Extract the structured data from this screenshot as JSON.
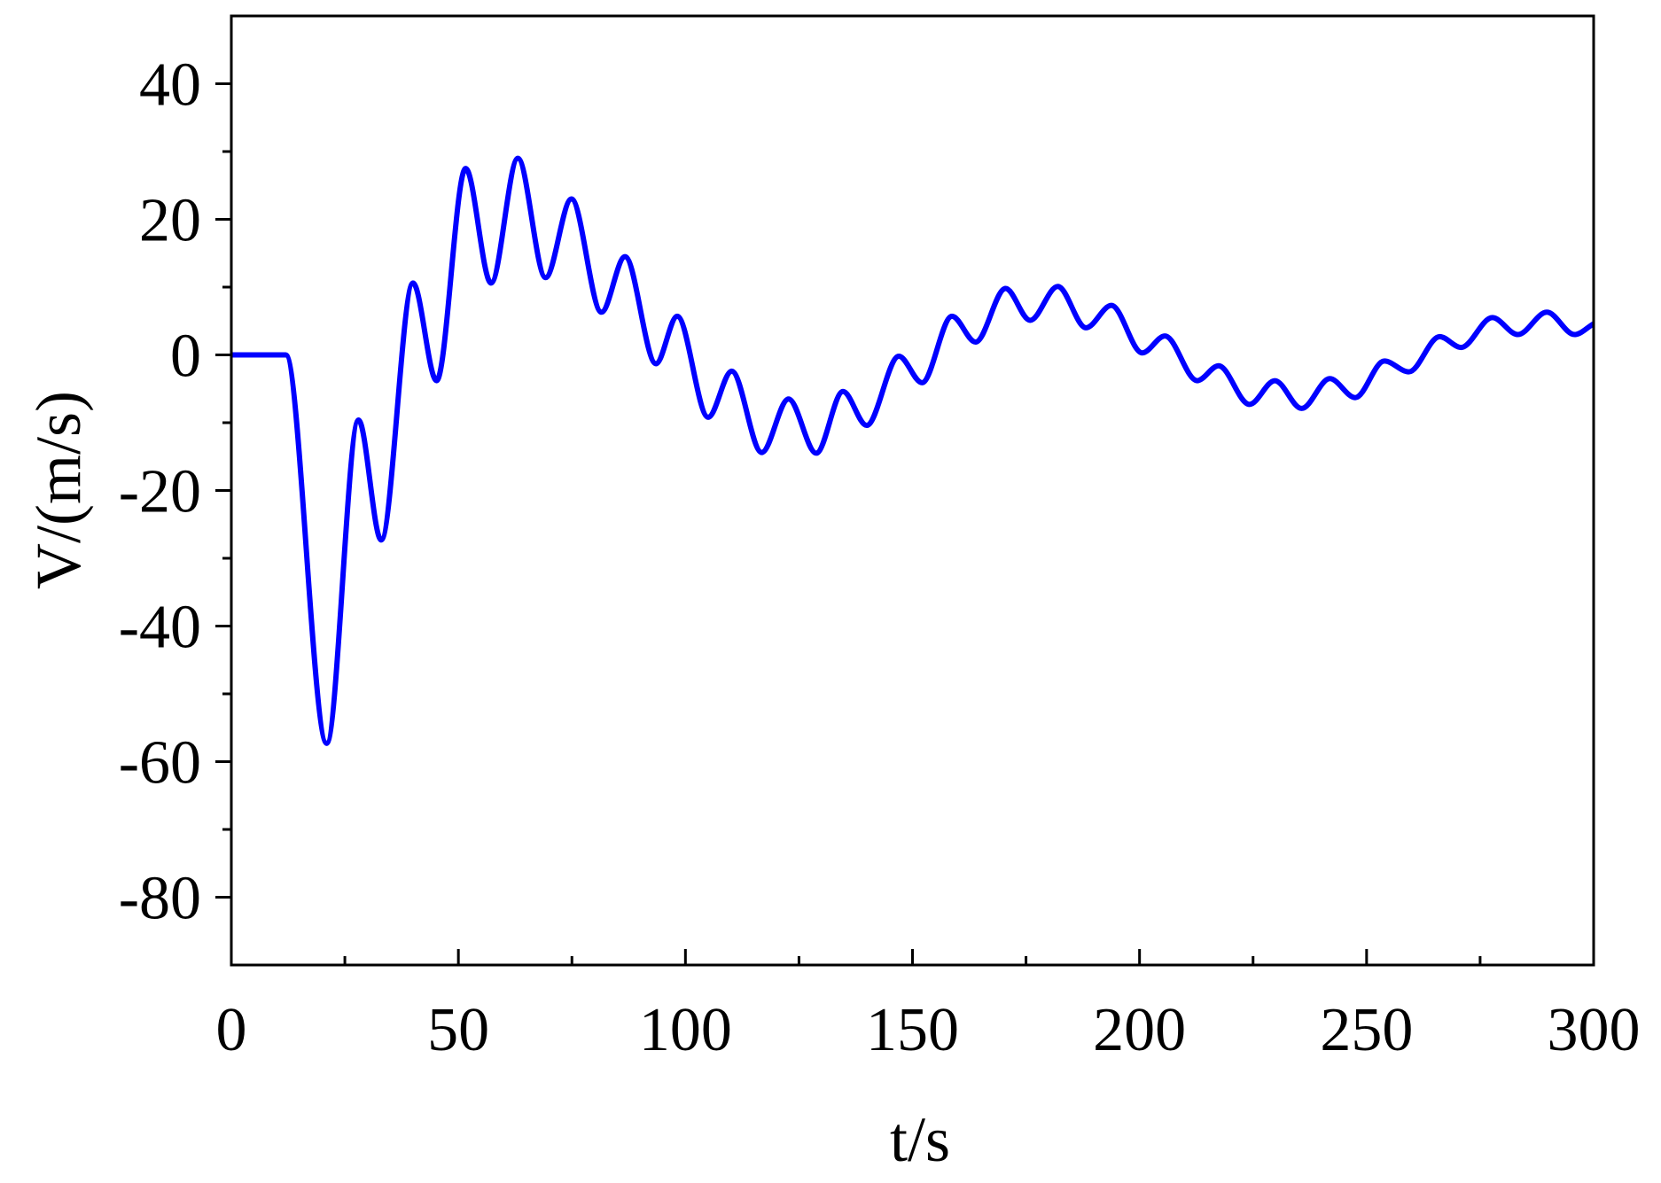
{
  "chart_data": {
    "type": "line",
    "xlabel": "t/s",
    "ylabel": "V/(m/s)",
    "xlim": [
      0,
      300
    ],
    "ylim": [
      -90,
      50
    ],
    "xticks": [
      0,
      50,
      100,
      150,
      200,
      250,
      300
    ],
    "yticks": [
      -80,
      -60,
      -40,
      -20,
      0,
      20,
      40
    ],
    "grid": false,
    "series": [
      {
        "color": "#0000ff",
        "x": [
          0,
          12,
          21,
          28,
          33,
          40,
          45.2,
          51.6,
          57.2,
          63.1,
          69.2,
          74.9,
          81.5,
          86.7,
          93.5,
          98.2,
          105,
          110.2,
          116.8,
          122.7,
          128.8,
          134.7,
          139.9,
          147,
          152.1,
          158.7,
          163.9,
          170.5,
          175.9,
          182,
          188.2,
          193.8,
          200.6,
          205.6,
          212.7,
          217.4,
          224.2,
          229.8,
          235.7,
          241.9,
          247.5,
          253.9,
          259.3,
          266.1,
          270.8,
          277.7,
          283.3,
          289.7,
          295.8,
          300
        ],
        "values": [
          0,
          0,
          -57.3,
          -9.6,
          -27.3,
          10.6,
          -3.8,
          27.5,
          10.6,
          29,
          11.4,
          23,
          6.3,
          14.5,
          -1.3,
          5.7,
          -9.2,
          -2.4,
          -14.4,
          -6.5,
          -14.5,
          -5.4,
          -10.4,
          -0.2,
          -4.1,
          5.7,
          1.9,
          9.8,
          5.1,
          10.1,
          4,
          7.3,
          0.3,
          2.8,
          -3.8,
          -1.6,
          -7.3,
          -3.8,
          -7.9,
          -3.5,
          -6.3,
          -0.9,
          -2.5,
          2.7,
          1.1,
          5.5,
          3,
          6.3,
          3,
          4.6
        ]
      }
    ]
  }
}
